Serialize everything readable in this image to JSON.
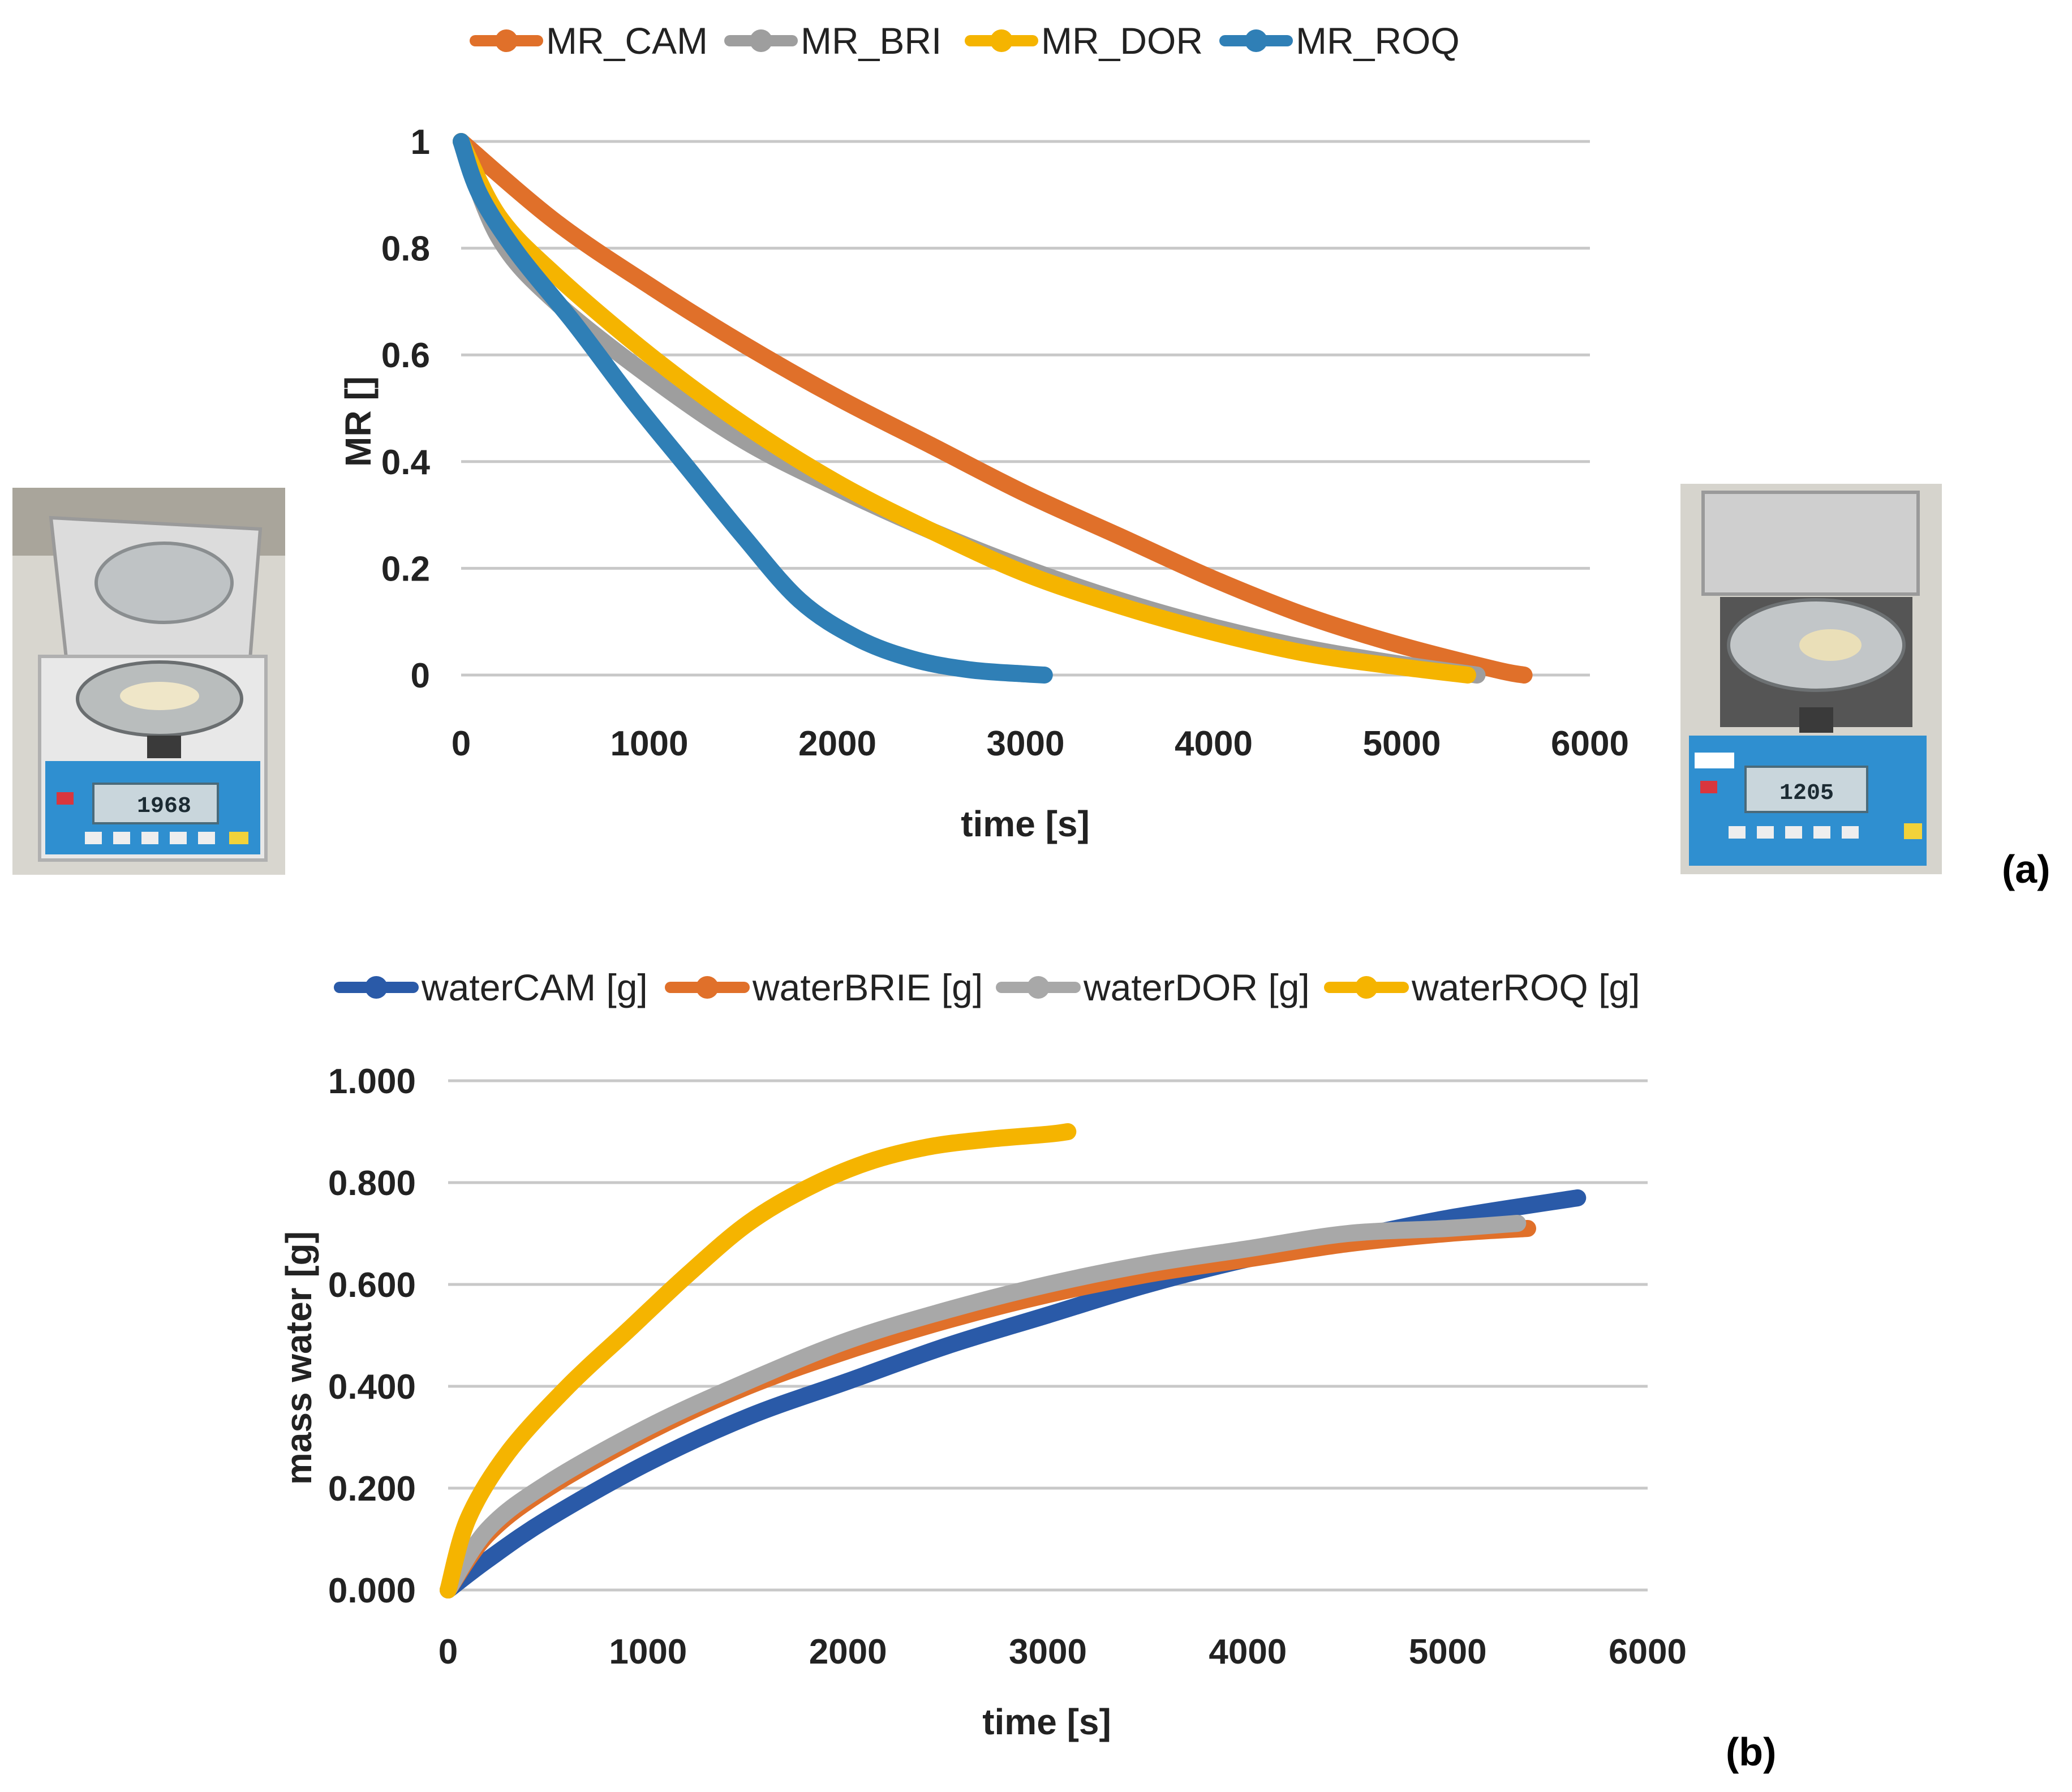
{
  "chart_data": [
    {
      "type": "line",
      "panel_label": "(a)",
      "xlabel": "time [s]",
      "ylabel": "MR []",
      "xlim": [
        0,
        6000
      ],
      "ylim": [
        0,
        1
      ],
      "x_ticks": [
        "0",
        "1000",
        "2000",
        "3000",
        "4000",
        "5000",
        "6000"
      ],
      "y_ticks": [
        "0",
        "0.2",
        "0.4",
        "0.6",
        "0.8",
        "1"
      ],
      "grid": true,
      "legend_position": "top",
      "series": [
        {
          "name": "MR_CAM",
          "color": "#e0702a",
          "x": [
            0,
            500,
            1000,
            1500,
            2000,
            2500,
            3000,
            3500,
            4000,
            4500,
            5000,
            5500,
            5650
          ],
          "y": [
            1.0,
            0.85,
            0.73,
            0.62,
            0.52,
            0.43,
            0.34,
            0.26,
            0.18,
            0.11,
            0.055,
            0.01,
            0.0
          ]
        },
        {
          "name": "MR_BRI",
          "color": "#9e9e9e",
          "x": [
            0,
            200,
            500,
            1000,
            1500,
            2000,
            2500,
            3000,
            3500,
            4000,
            4500,
            5000,
            5400
          ],
          "y": [
            1.0,
            0.82,
            0.7,
            0.56,
            0.44,
            0.35,
            0.27,
            0.2,
            0.14,
            0.09,
            0.05,
            0.02,
            0.0
          ]
        },
        {
          "name": "MR_DOR",
          "color": "#f5b400",
          "x": [
            0,
            200,
            500,
            1000,
            1500,
            2000,
            2500,
            3000,
            3500,
            4000,
            4500,
            5000,
            5350
          ],
          "y": [
            1.0,
            0.86,
            0.75,
            0.6,
            0.47,
            0.36,
            0.27,
            0.19,
            0.13,
            0.08,
            0.04,
            0.015,
            0.0
          ]
        },
        {
          "name": "MR_ROQ",
          "color": "#2f7fb6",
          "x": [
            0,
            100,
            300,
            600,
            900,
            1200,
            1500,
            1800,
            2100,
            2400,
            2700,
            3000,
            3100
          ],
          "y": [
            1.0,
            0.9,
            0.79,
            0.66,
            0.52,
            0.39,
            0.26,
            0.14,
            0.07,
            0.03,
            0.01,
            0.002,
            0.0
          ]
        }
      ]
    },
    {
      "type": "line",
      "panel_label": "(b)",
      "xlabel": "time [s]",
      "ylabel": "mass water  [g]",
      "xlim": [
        0,
        6000
      ],
      "ylim": [
        0,
        1
      ],
      "x_ticks": [
        "0",
        "1000",
        "2000",
        "3000",
        "4000",
        "5000",
        "6000"
      ],
      "y_ticks": [
        "0.000",
        "0.200",
        "0.400",
        "0.600",
        "0.800",
        "1.000"
      ],
      "grid": true,
      "legend_position": "top",
      "series": [
        {
          "name": "waterCAM [g]",
          "color": "#2a5aa8",
          "x": [
            0,
            200,
            500,
            1000,
            1500,
            2000,
            2500,
            3000,
            3500,
            4000,
            4500,
            5000,
            5650
          ],
          "y": [
            0.0,
            0.06,
            0.14,
            0.25,
            0.34,
            0.41,
            0.48,
            0.54,
            0.6,
            0.65,
            0.69,
            0.73,
            0.77
          ]
        },
        {
          "name": "waterBRIE [g]",
          "color": "#e0702a",
          "x": [
            0,
            200,
            500,
            1000,
            1500,
            2000,
            2500,
            3000,
            3500,
            4000,
            4500,
            5000,
            5400
          ],
          "y": [
            0.0,
            0.11,
            0.2,
            0.31,
            0.4,
            0.47,
            0.53,
            0.58,
            0.62,
            0.65,
            0.68,
            0.7,
            0.71
          ]
        },
        {
          "name": "waterDOR [g]",
          "color": "#a8a8a8",
          "x": [
            0,
            200,
            500,
            1000,
            1500,
            2000,
            2500,
            3000,
            3500,
            4000,
            4500,
            5000,
            5350
          ],
          "y": [
            0.0,
            0.12,
            0.21,
            0.32,
            0.41,
            0.49,
            0.55,
            0.6,
            0.64,
            0.67,
            0.7,
            0.71,
            0.72
          ]
        },
        {
          "name": "waterROQ [g]",
          "color": "#f5b400",
          "x": [
            0,
            100,
            300,
            600,
            900,
            1200,
            1500,
            1800,
            2100,
            2400,
            2700,
            3000,
            3100
          ],
          "y": [
            0.0,
            0.14,
            0.27,
            0.4,
            0.51,
            0.62,
            0.72,
            0.79,
            0.84,
            0.87,
            0.885,
            0.895,
            0.9
          ]
        }
      ]
    }
  ],
  "photos": {
    "left_display_value": "1968",
    "right_display_value": "1205"
  }
}
